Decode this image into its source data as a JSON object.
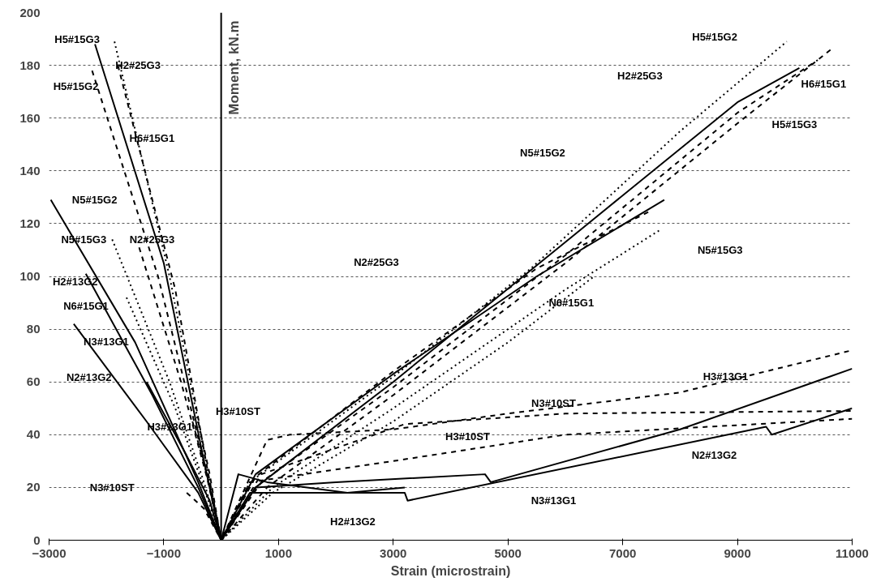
{
  "chart_data": {
    "type": "line",
    "xlabel": "Strain (microstrain)",
    "ylabel": "Moment, kN.m",
    "xlim": [
      -3000,
      11000
    ],
    "ylim": [
      0,
      200
    ],
    "xticks": [
      -3000,
      -1000,
      1000,
      3000,
      5000,
      7000,
      9000,
      11000
    ],
    "yticks": [
      0,
      20,
      40,
      60,
      80,
      100,
      120,
      140,
      160,
      180,
      200
    ],
    "grid": "y",
    "marker": "none",
    "ref_lines": [
      {
        "axis": "x",
        "value": 0,
        "label": null,
        "color": "#000000",
        "line_style": "solid"
      }
    ],
    "series": [
      {
        "name": "H5#15G3",
        "color": "#000000",
        "line_style": "solid",
        "x": [
          -2200,
          -1000,
          -300,
          0,
          600,
          3000,
          6000,
          9000,
          10080
        ],
        "values": [
          188,
          105,
          30,
          0,
          20,
          60,
          113,
          166,
          179
        ]
      },
      {
        "name": "H2#25G3",
        "color": "#000000",
        "line_style": "dotted",
        "x": [
          -1860,
          -900,
          -250,
          0,
          500,
          3000,
          5400,
          8000,
          9860
        ],
        "values": [
          189,
          100,
          28,
          0,
          22,
          62,
          103,
          155,
          189
        ]
      },
      {
        "name": "H5#15G2",
        "color": "#000000",
        "line_style": "dashed",
        "x": [
          -2250,
          -1100,
          -300,
          0,
          700,
          3000,
          6000,
          9000,
          10400
        ],
        "values": [
          178,
          100,
          30,
          0,
          22,
          58,
          108,
          162,
          182
        ]
      },
      {
        "name": "H6#15G1",
        "color": "#000000",
        "line_style": "dashed",
        "x": [
          -1800,
          -800,
          -250,
          0,
          800,
          3000,
          6000,
          9000,
          10630
        ],
        "values": [
          180,
          95,
          28,
          0,
          20,
          55,
          105,
          158,
          186
        ]
      },
      {
        "name": "N5#15G2",
        "color": "#000000",
        "line_style": "solid",
        "x": [
          -2970,
          -1500,
          -400,
          0,
          600,
          3000,
          5500,
          7725
        ],
        "values": [
          129,
          75,
          22,
          0,
          25,
          63,
          100,
          129
        ]
      },
      {
        "name": "N5#15G3",
        "color": "#000000",
        "line_style": "dotted",
        "x": [
          -1900,
          -900,
          -300,
          0,
          900,
          3000,
          6000,
          7680
        ],
        "values": [
          114,
          60,
          22,
          0,
          20,
          50,
          95,
          118
        ]
      },
      {
        "name": "N2#25G3",
        "color": "#000000",
        "line_style": "dashed",
        "x": [
          -1430,
          -700,
          -250,
          0,
          600,
          3000,
          5500,
          7500
        ],
        "values": [
          111,
          60,
          24,
          0,
          24,
          64,
          103,
          125
        ]
      },
      {
        "name": "H2#13G2",
        "color": "#000000",
        "line_style": "solid",
        "x": [
          -2360,
          -1200,
          -400,
          0,
          300,
          800,
          2200,
          3200
        ],
        "values": [
          101,
          55,
          20,
          0,
          25,
          22,
          18,
          20
        ]
      },
      {
        "name": "N6#15G1",
        "color": "#000000",
        "line_style": "dotted",
        "x": [
          -1650,
          -800,
          -300,
          0,
          900,
          3000,
          5000,
          6500
        ],
        "values": [
          92,
          50,
          20,
          0,
          18,
          45,
          75,
          100
        ]
      },
      {
        "name": "N3#13G1",
        "color": "#000000",
        "line_style": "solid",
        "x": [
          -2570,
          -1300,
          -400,
          0,
          600,
          2000,
          4600,
          4700,
          8000,
          11000
        ],
        "values": [
          82,
          45,
          18,
          0,
          20,
          22,
          25,
          22,
          42,
          65
        ]
      },
      {
        "name": "N2#13G2",
        "color": "#000000",
        "line_style": "solid",
        "x": [
          -1300,
          -600,
          -200,
          0,
          500,
          3200,
          3250,
          9500,
          9600,
          11000
        ],
        "values": [
          60,
          32,
          15,
          0,
          18,
          18,
          15,
          43,
          40,
          50
        ]
      },
      {
        "name": "H3#13G1",
        "color": "#000000",
        "line_style": "dashed",
        "x": [
          -500,
          -250,
          0,
          800,
          1200,
          3000,
          5000,
          8000,
          11000
        ],
        "values": [
          45,
          25,
          0,
          38,
          40,
          42,
          48,
          56,
          72
        ]
      },
      {
        "name": "H3#10ST",
        "color": "#000000",
        "line_style": "dashed",
        "x": [
          -400,
          -200,
          0,
          500,
          3000,
          6000,
          11000
        ],
        "values": [
          45,
          25,
          0,
          22,
          30,
          40,
          46
        ]
      },
      {
        "name": "N3#10ST",
        "color": "#000000",
        "line_style": "dashed",
        "x": [
          -600,
          -300,
          0,
          700,
          3200,
          6000,
          11000
        ],
        "values": [
          18,
          12,
          0,
          25,
          44,
          48,
          49
        ]
      }
    ]
  }
}
